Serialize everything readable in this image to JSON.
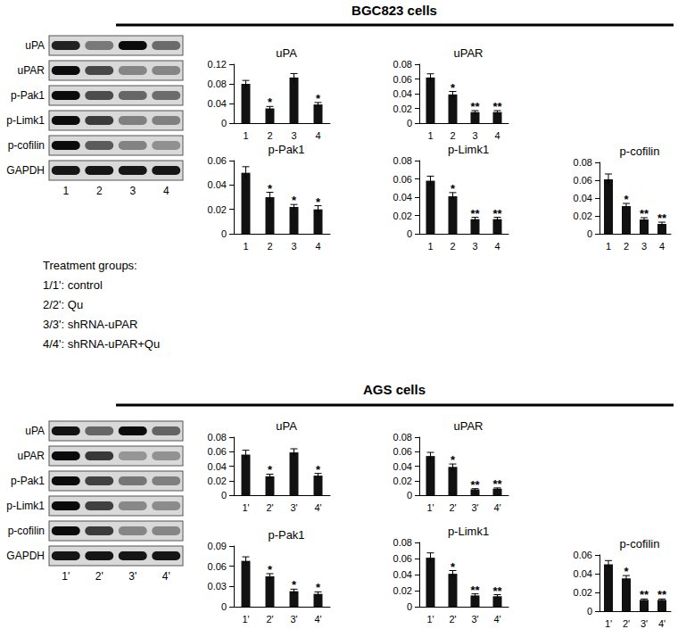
{
  "figure": {
    "treatment_groups": {
      "title": "Treatment groups:",
      "items": [
        "1/1': control",
        "2/2': Qu",
        "3/3': shRNA-uPAR",
        "4/4': shRNA-uPAR+Qu"
      ]
    },
    "panels": [
      {
        "title": "BGC823 cells",
        "blot": {
          "rows": [
            "uPA",
            "uPAR",
            "p-Pak1",
            "p-Limk1",
            "p-cofilin",
            "GAPDH"
          ],
          "lanes": [
            "1",
            "2",
            "3",
            "4"
          ]
        }
      },
      {
        "title": "AGS cells",
        "blot": {
          "rows": [
            "uPA",
            "uPAR",
            "p-Pak1",
            "p-Limk1",
            "p-cofilin",
            "GAPDH"
          ],
          "lanes": [
            "1'",
            "2'",
            "3'",
            "4'"
          ]
        }
      }
    ]
  },
  "chart_data": [
    {
      "type": "bar",
      "title": "uPA",
      "categories": [
        "1",
        "2",
        "3",
        "4"
      ],
      "values": [
        0.08,
        0.03,
        0.093,
        0.038
      ],
      "errors": [
        0.007,
        0.004,
        0.008,
        0.004
      ],
      "significance": [
        null,
        "*",
        null,
        "*"
      ],
      "color": "#111111",
      "ylim": [
        0,
        0.12
      ],
      "yticks": [
        0,
        0.04,
        0.08,
        0.12
      ],
      "grid": false
    },
    {
      "type": "bar",
      "title": "uPAR",
      "categories": [
        "1",
        "2",
        "3",
        "4"
      ],
      "values": [
        0.062,
        0.039,
        0.015,
        0.015
      ],
      "errors": [
        0.005,
        0.004,
        0.002,
        0.002
      ],
      "significance": [
        null,
        "*",
        "**",
        "**"
      ],
      "color": "#111111",
      "ylim": [
        0,
        0.08
      ],
      "yticks": [
        0,
        0.02,
        0.04,
        0.06,
        0.08
      ],
      "grid": false
    },
    {
      "type": "bar",
      "title": "p-Pak1",
      "categories": [
        "1",
        "2",
        "3",
        "4"
      ],
      "values": [
        0.05,
        0.03,
        0.022,
        0.02
      ],
      "errors": [
        0.005,
        0.004,
        0.002,
        0.003
      ],
      "significance": [
        null,
        "*",
        "*",
        "*"
      ],
      "color": "#111111",
      "ylim": [
        0,
        0.06
      ],
      "yticks": [
        0,
        0.02,
        0.04,
        0.06
      ],
      "grid": false
    },
    {
      "type": "bar",
      "title": "p-Limk1",
      "categories": [
        "1",
        "2",
        "3",
        "4"
      ],
      "values": [
        0.058,
        0.041,
        0.016,
        0.016
      ],
      "errors": [
        0.005,
        0.004,
        0.002,
        0.002
      ],
      "significance": [
        null,
        "*",
        "**",
        "**"
      ],
      "color": "#111111",
      "ylim": [
        0,
        0.08
      ],
      "yticks": [
        0,
        0.02,
        0.04,
        0.06,
        0.08
      ],
      "grid": false
    },
    {
      "type": "bar",
      "title": "p-cofilin",
      "categories": [
        "1",
        "2",
        "3",
        "4"
      ],
      "values": [
        0.061,
        0.031,
        0.016,
        0.011
      ],
      "errors": [
        0.006,
        0.003,
        0.002,
        0.002
      ],
      "significance": [
        null,
        "*",
        "**",
        "**"
      ],
      "color": "#111111",
      "ylim": [
        0,
        0.08
      ],
      "yticks": [
        0,
        0.02,
        0.04,
        0.06,
        0.08
      ],
      "grid": false
    },
    {
      "type": "bar",
      "title": "uPA",
      "categories": [
        "1'",
        "2'",
        "3'",
        "4'"
      ],
      "values": [
        0.056,
        0.026,
        0.059,
        0.027
      ],
      "errors": [
        0.006,
        0.003,
        0.005,
        0.003
      ],
      "significance": [
        null,
        "*",
        null,
        "*"
      ],
      "color": "#111111",
      "ylim": [
        0,
        0.08
      ],
      "yticks": [
        0,
        0.02,
        0.04,
        0.06,
        0.08
      ],
      "grid": false
    },
    {
      "type": "bar",
      "title": "uPAR",
      "categories": [
        "1'",
        "2'",
        "3'",
        "4'"
      ],
      "values": [
        0.054,
        0.039,
        0.008,
        0.009
      ],
      "errors": [
        0.005,
        0.004,
        0.001,
        0.001
      ],
      "significance": [
        null,
        "*",
        "**",
        "**"
      ],
      "color": "#111111",
      "ylim": [
        0,
        0.08
      ],
      "yticks": [
        0,
        0.02,
        0.04,
        0.06,
        0.08
      ],
      "grid": false
    },
    {
      "type": "bar",
      "title": "p-Pak1",
      "categories": [
        "1'",
        "2'",
        "3'",
        "4'"
      ],
      "values": [
        0.068,
        0.045,
        0.023,
        0.019
      ],
      "errors": [
        0.006,
        0.004,
        0.003,
        0.003
      ],
      "significance": [
        null,
        "*",
        "*",
        "*"
      ],
      "color": "#111111",
      "ylim": [
        0,
        0.09
      ],
      "yticks": [
        0,
        0.03,
        0.06,
        0.09
      ],
      "grid": false
    },
    {
      "type": "bar",
      "title": "p-Limk1",
      "categories": [
        "1'",
        "2'",
        "3'",
        "4'"
      ],
      "values": [
        0.061,
        0.041,
        0.014,
        0.013
      ],
      "errors": [
        0.006,
        0.004,
        0.002,
        0.002
      ],
      "significance": [
        null,
        "*",
        "**",
        "**"
      ],
      "color": "#111111",
      "ylim": [
        0,
        0.08
      ],
      "yticks": [
        0,
        0.02,
        0.04,
        0.06,
        0.08
      ],
      "grid": false
    },
    {
      "type": "bar",
      "title": "p-cofilin",
      "categories": [
        "1'",
        "2'",
        "3'",
        "4'"
      ],
      "values": [
        0.05,
        0.035,
        0.012,
        0.012
      ],
      "errors": [
        0.004,
        0.003,
        0.001,
        0.001
      ],
      "significance": [
        null,
        "*",
        "**",
        "**"
      ],
      "color": "#111111",
      "ylim": [
        0,
        0.06
      ],
      "yticks": [
        0,
        0.02,
        0.04,
        0.06
      ],
      "grid": false
    }
  ]
}
